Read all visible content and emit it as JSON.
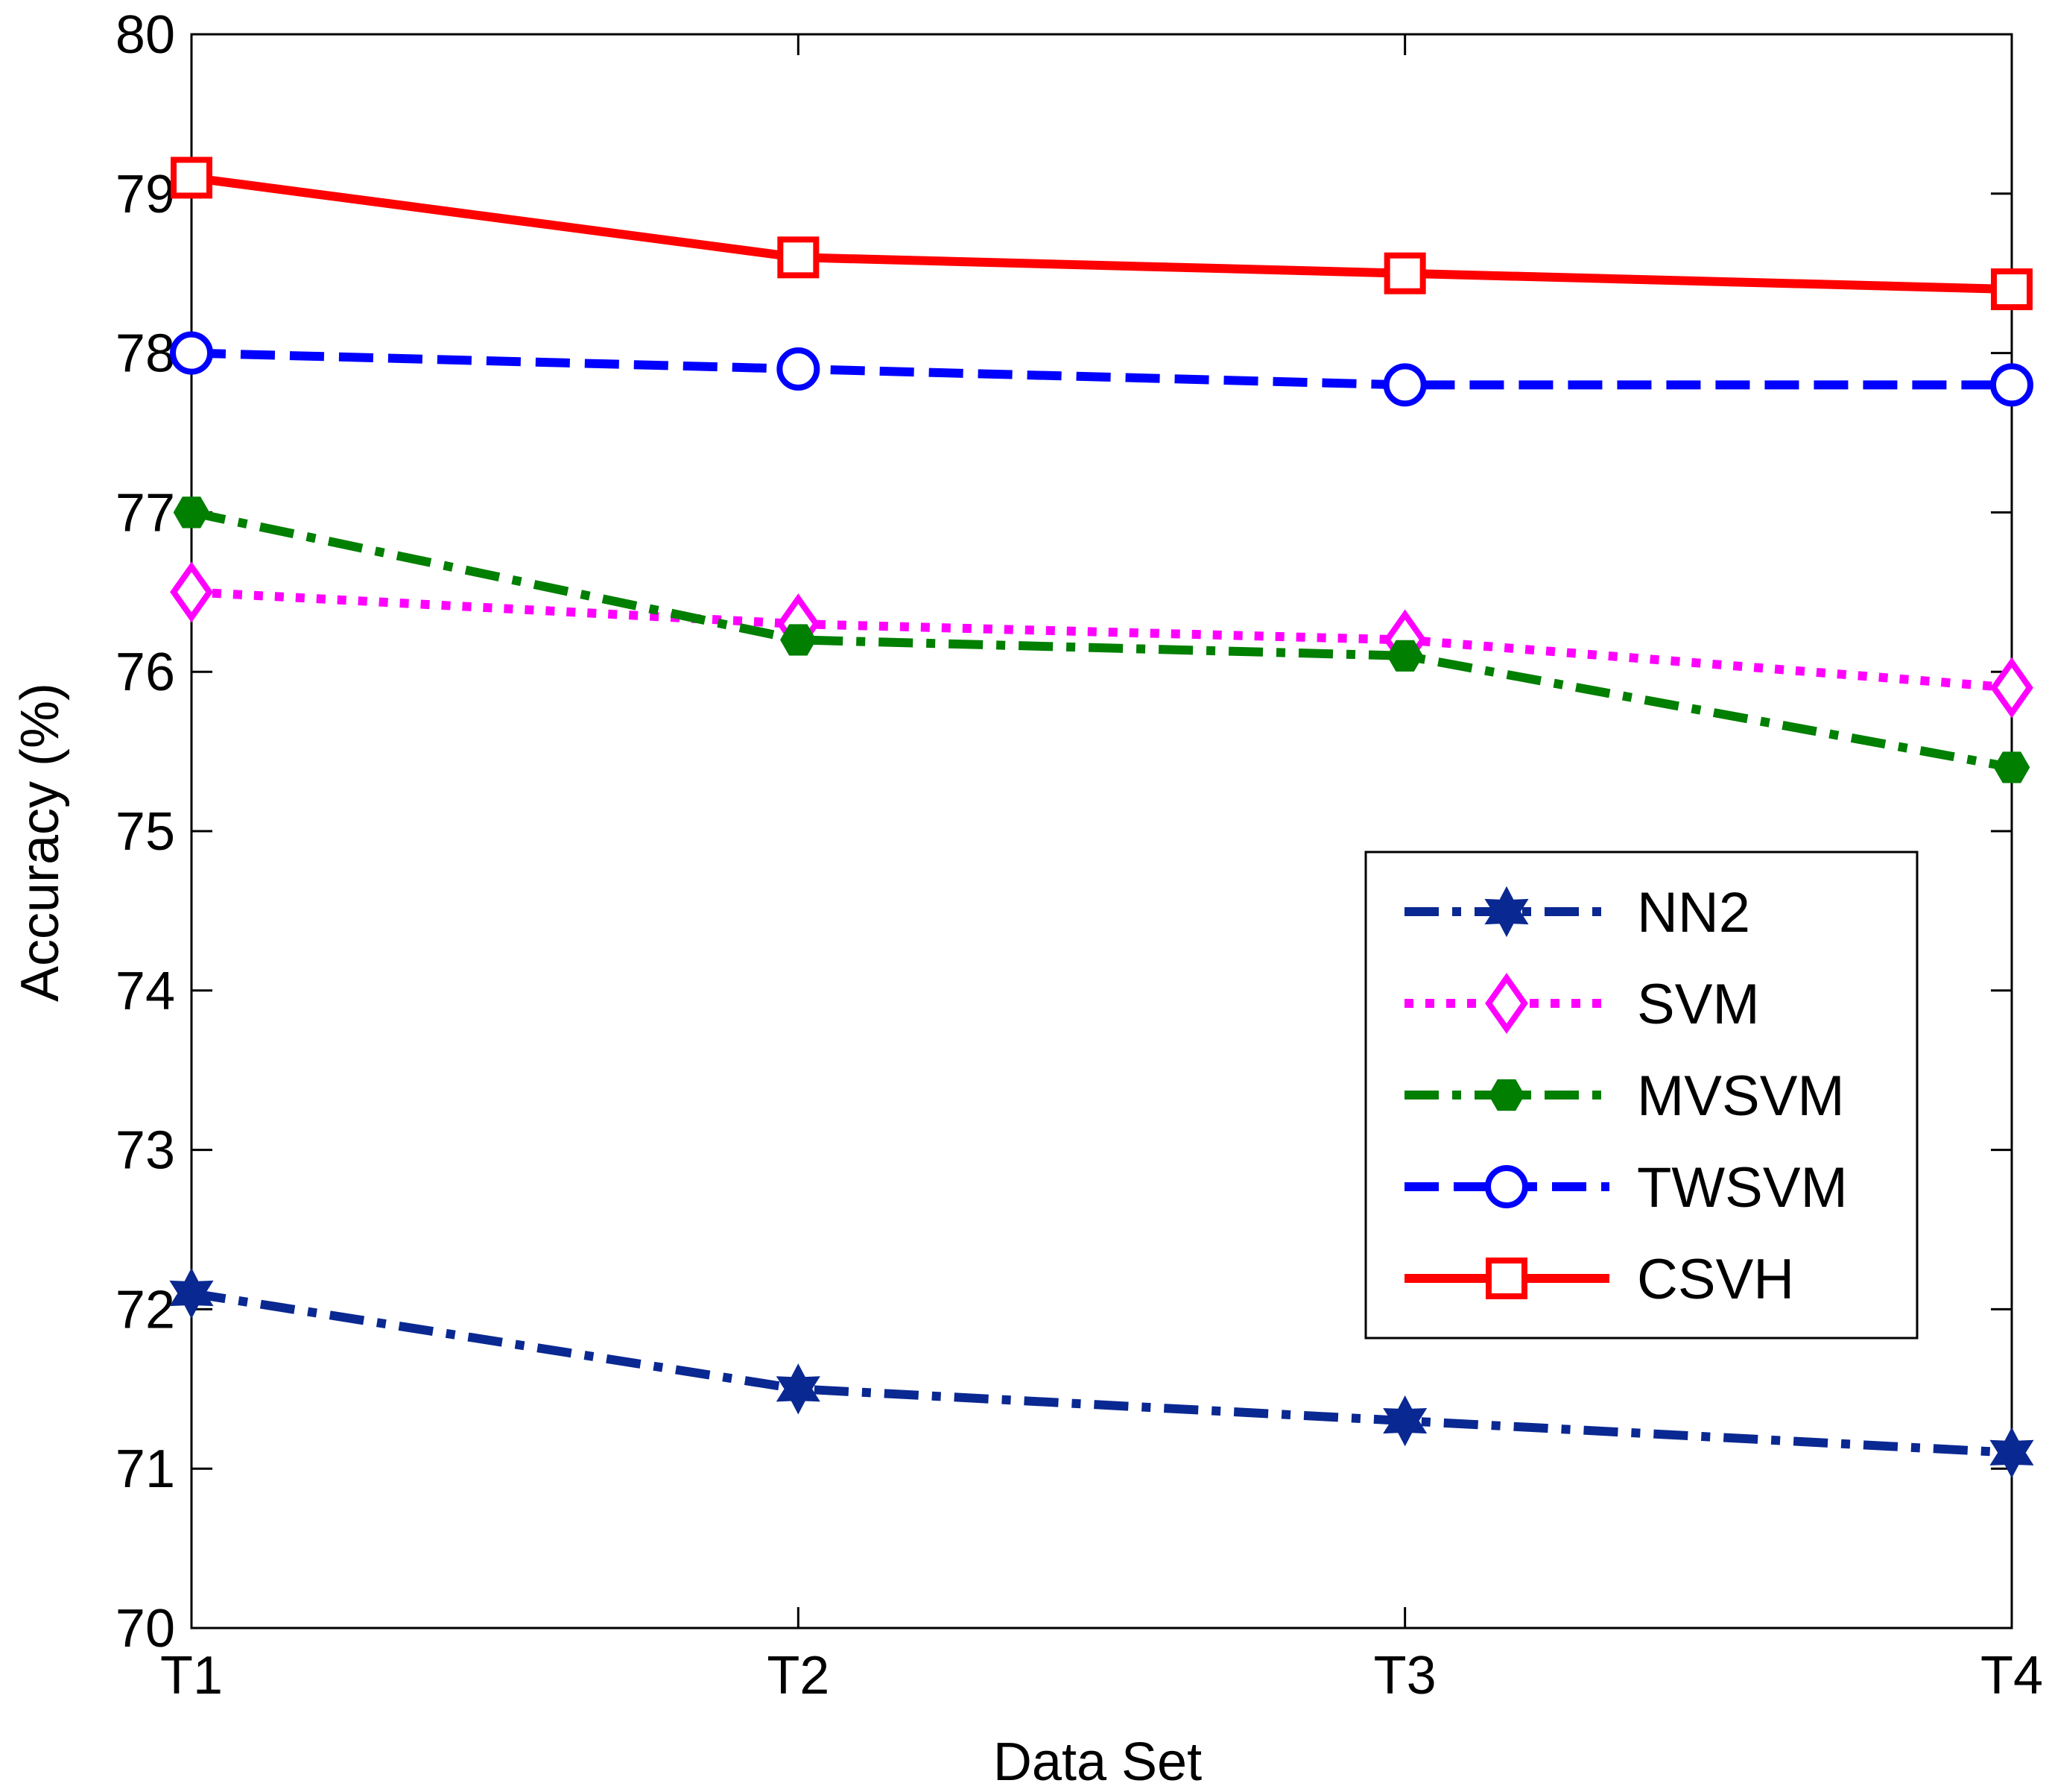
{
  "chart_data": {
    "type": "line",
    "title": "",
    "xlabel": "Data Set",
    "ylabel": "Accuracy (%)",
    "categories": [
      "T1",
      "T2",
      "T3",
      "T4"
    ],
    "ylim": [
      70,
      80
    ],
    "yticks": [
      70,
      71,
      72,
      73,
      74,
      75,
      76,
      77,
      78,
      79,
      80
    ],
    "grid": false,
    "legend_position": "center-right",
    "series": [
      {
        "name": "NN2",
        "values": [
          72.1,
          71.5,
          71.3,
          71.1
        ],
        "color": "#0a2891",
        "dash": "dashdot",
        "marker": "hexagram"
      },
      {
        "name": "SVM",
        "values": [
          76.5,
          76.3,
          76.2,
          75.9
        ],
        "color": "#ff00ff",
        "dash": "dotted",
        "marker": "diamond"
      },
      {
        "name": "MVSVM",
        "values": [
          77.0,
          76.2,
          76.1,
          75.4
        ],
        "color": "#007f00",
        "dash": "dashdot",
        "marker": "hexagon"
      },
      {
        "name": "TWSVM",
        "values": [
          78.0,
          77.9,
          77.8,
          77.8
        ],
        "color": "#0000ff",
        "dash": "dashed",
        "marker": "circle"
      },
      {
        "name": "CSVH",
        "values": [
          79.1,
          78.6,
          78.5,
          78.4
        ],
        "color": "#ff0000",
        "dash": "solid",
        "marker": "square"
      }
    ]
  }
}
